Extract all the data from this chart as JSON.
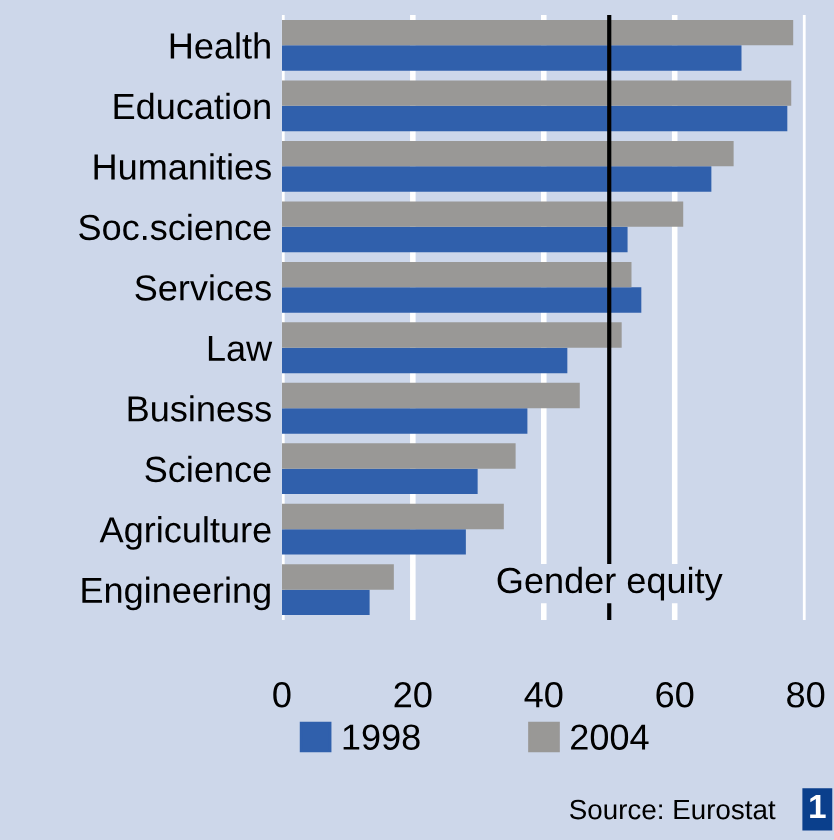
{
  "chart_data": {
    "type": "bar",
    "orientation": "horizontal",
    "categories": [
      "Health",
      "Education",
      "Humanities",
      "Soc.science",
      "Services",
      "Law",
      "Business",
      "Science",
      "Agriculture",
      "Engineering"
    ],
    "series": [
      {
        "name": "1998",
        "color": "#3060ac",
        "values": [
          70.2,
          77.2,
          65.6,
          52.8,
          54.9,
          43.6,
          37.5,
          29.9,
          28.1,
          13.4
        ]
      },
      {
        "name": "2004",
        "color": "#999896",
        "values": [
          78.1,
          77.8,
          69.0,
          61.3,
          53.4,
          51.9,
          45.5,
          35.7,
          33.9,
          17.1
        ]
      }
    ],
    "xlim": [
      0,
      80
    ],
    "xticks": [
      0,
      20,
      40,
      60,
      80
    ],
    "grid": "x",
    "legend": "bottom",
    "ref_lines": [
      {
        "axis": "x",
        "value": 50,
        "label": "Gender equity",
        "color": "#000000"
      }
    ],
    "annotations": [
      "Source: Eurostat",
      "1"
    ]
  }
}
